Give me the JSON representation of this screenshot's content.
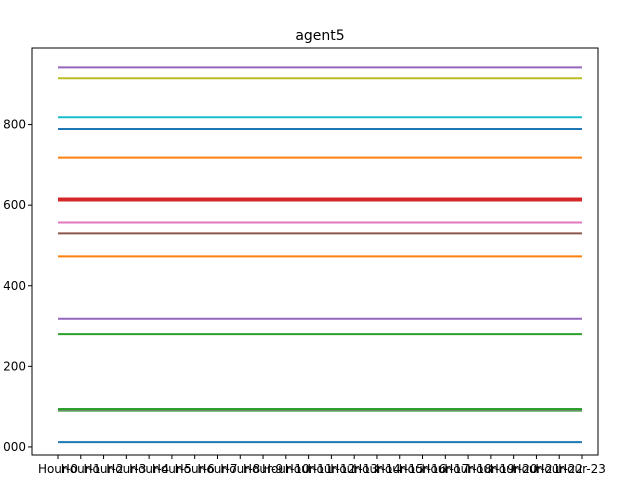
{
  "chart_data": {
    "type": "line",
    "title": "agent5",
    "xlabel": "",
    "ylabel": "",
    "x": [
      "Hour-0",
      "Hour-1",
      "Hour-2",
      "Hour-3",
      "Hour-4",
      "Hour-5",
      "Hour-6",
      "Hour-7",
      "Hour-8",
      "Hour-9",
      "Hour-10",
      "Hour-11",
      "Hour-12",
      "Hour-13",
      "Hour-14",
      "Hour-15",
      "Hour-16",
      "Hour-17",
      "Hour-18",
      "Hour-19",
      "Hour-20",
      "Hour-21",
      "Hour-22",
      "Hour-23"
    ],
    "y_tick_labels": [
      "000",
      "200",
      "400",
      "600",
      "800"
    ],
    "y_tick_values": [
      0,
      200,
      400,
      600,
      800
    ],
    "ylim": [
      -20,
      990
    ],
    "grid": false,
    "legend": "none",
    "series": [
      {
        "value": 12,
        "color": "#1f77b4",
        "width": 2
      },
      {
        "value": 90,
        "color": "#2ca02c",
        "width": 2
      },
      {
        "value": 92,
        "color": "#7f7f7f",
        "width": 2
      },
      {
        "value": 94,
        "color": "#2ca02c",
        "width": 2
      },
      {
        "value": 280,
        "color": "#2ca02c",
        "width": 2
      },
      {
        "value": 318,
        "color": "#9467bd",
        "width": 2
      },
      {
        "value": 473,
        "color": "#ff7f0e",
        "width": 2
      },
      {
        "value": 530,
        "color": "#8c564b",
        "width": 2
      },
      {
        "value": 557,
        "color": "#e377c2",
        "width": 2
      },
      {
        "value": 614,
        "color": "#d62728",
        "width": 4
      },
      {
        "value": 718,
        "color": "#ff7f0e",
        "width": 2
      },
      {
        "value": 789,
        "color": "#1f77b4",
        "width": 2
      },
      {
        "value": 818,
        "color": "#17becf",
        "width": 2
      },
      {
        "value": 915,
        "color": "#bcbd22",
        "width": 2
      },
      {
        "value": 942,
        "color": "#9467bd",
        "width": 2
      }
    ]
  }
}
